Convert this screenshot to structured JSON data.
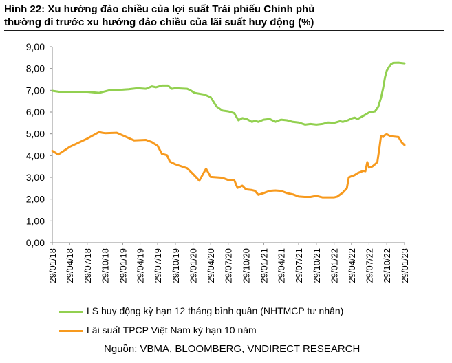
{
  "figure": {
    "title_lines": [
      "Hình 22: Xu hướng đảo chiều của lợi suất Trái phiếu Chính phủ",
      "thường đi trước xu hướng đảo chiều của lãi suất huy động (%)"
    ],
    "source": "Nguồn: VBMA, BLOOMBERG, VNDIRECT RESEARCH"
  },
  "chart_data": {
    "type": "line",
    "title": "Hình 22: Xu hướng đảo chiều của lợi suất Trái phiếu Chính phủ thường đi trước xu hướng đảo chiều của lãi suất huy động (%)",
    "xlabel": "",
    "ylabel": "",
    "ylim": [
      0,
      9
    ],
    "yticks": [
      "0,00",
      "1,00",
      "2,00",
      "3,00",
      "4,00",
      "5,00",
      "6,00",
      "7,00",
      "8,00",
      "9,00"
    ],
    "xticks": [
      "29/01/18",
      "29/04/18",
      "29/07/18",
      "29/10/18",
      "29/01/19",
      "29/04/19",
      "29/07/19",
      "29/10/19",
      "29/01/20",
      "29/04/20",
      "29/07/20",
      "29/10/20",
      "29/01/21",
      "29/04/21",
      "29/07/21",
      "29/10/21",
      "29/01/22",
      "29/04/22",
      "29/07/22",
      "29/10/22",
      "29/01/23"
    ],
    "grid": false,
    "legend_position": "bottom",
    "series": [
      {
        "name": "LS huy động kỳ hạn 12 tháng bình quân (NHTMCP tư nhân)",
        "color": "#92d050",
        "points": [
          [
            "29/01/18",
            6.98
          ],
          [
            "05/03/18",
            6.93
          ],
          [
            "29/04/18",
            6.93
          ],
          [
            "29/07/18",
            6.93
          ],
          [
            "29/09/18",
            6.88
          ],
          [
            "29/11/18",
            7.02
          ],
          [
            "29/01/19",
            7.03
          ],
          [
            "01/03/19",
            7.05
          ],
          [
            "15/04/19",
            7.1
          ],
          [
            "29/05/19",
            7.07
          ],
          [
            "29/06/19",
            7.18
          ],
          [
            "20/07/19",
            7.14
          ],
          [
            "20/08/19",
            7.22
          ],
          [
            "20/09/19",
            7.22
          ],
          [
            "10/10/19",
            7.07
          ],
          [
            "29/10/19",
            7.1
          ],
          [
            "29/12/19",
            7.07
          ],
          [
            "15/01/20",
            7.0
          ],
          [
            "05/02/20",
            6.88
          ],
          [
            "29/03/20",
            6.8
          ],
          [
            "29/04/20",
            6.68
          ],
          [
            "29/05/20",
            6.26
          ],
          [
            "29/06/20",
            6.07
          ],
          [
            "29/07/20",
            6.03
          ],
          [
            "29/08/20",
            5.95
          ],
          [
            "20/09/20",
            5.62
          ],
          [
            "10/10/20",
            5.72
          ],
          [
            "01/11/20",
            5.68
          ],
          [
            "29/11/20",
            5.55
          ],
          [
            "15/12/20",
            5.6
          ],
          [
            "01/01/21",
            5.55
          ],
          [
            "29/01/21",
            5.65
          ],
          [
            "01/03/21",
            5.68
          ],
          [
            "29/03/21",
            5.55
          ],
          [
            "29/04/21",
            5.65
          ],
          [
            "29/05/21",
            5.62
          ],
          [
            "29/06/21",
            5.55
          ],
          [
            "29/07/21",
            5.52
          ],
          [
            "01/09/21",
            5.42
          ],
          [
            "29/09/21",
            5.45
          ],
          [
            "29/10/21",
            5.42
          ],
          [
            "29/11/21",
            5.45
          ],
          [
            "29/12/21",
            5.52
          ],
          [
            "29/01/22",
            5.5
          ],
          [
            "01/03/22",
            5.58
          ],
          [
            "15/03/22",
            5.55
          ],
          [
            "10/04/22",
            5.62
          ],
          [
            "29/04/22",
            5.7
          ],
          [
            "15/05/22",
            5.74
          ],
          [
            "01/06/22",
            5.68
          ],
          [
            "29/06/22",
            5.82
          ],
          [
            "10/07/22",
            5.88
          ],
          [
            "29/07/22",
            5.98
          ],
          [
            "29/08/22",
            6.03
          ],
          [
            "15/09/22",
            6.25
          ],
          [
            "29/09/22",
            6.65
          ],
          [
            "10/10/22",
            7.1
          ],
          [
            "20/10/22",
            7.6
          ],
          [
            "29/10/22",
            7.9
          ],
          [
            "10/11/22",
            8.08
          ],
          [
            "20/11/22",
            8.2
          ],
          [
            "01/12/22",
            8.26
          ],
          [
            "29/12/22",
            8.27
          ],
          [
            "29/01/23",
            8.24
          ]
        ]
      },
      {
        "name": "Lãi suất TPCP Việt Nam kỳ hạn 10 năm",
        "color": "#f79a1e",
        "points": [
          [
            "29/01/18",
            4.22
          ],
          [
            "01/03/18",
            4.05
          ],
          [
            "29/04/18",
            4.4
          ],
          [
            "29/07/18",
            4.78
          ],
          [
            "29/09/18",
            5.08
          ],
          [
            "15/10/18",
            5.05
          ],
          [
            "29/10/18",
            5.03
          ],
          [
            "29/12/18",
            5.05
          ],
          [
            "29/03/19",
            4.7
          ],
          [
            "29/05/19",
            4.72
          ],
          [
            "29/06/19",
            4.62
          ],
          [
            "29/07/19",
            4.45
          ],
          [
            "20/08/19",
            4.08
          ],
          [
            "15/09/19",
            4.02
          ],
          [
            "01/10/19",
            3.72
          ],
          [
            "29/10/19",
            3.6
          ],
          [
            "29/12/19",
            3.42
          ],
          [
            "29/01/20",
            3.15
          ],
          [
            "01/03/20",
            2.85
          ],
          [
            "05/04/20",
            3.4
          ],
          [
            "29/04/20",
            3.02
          ],
          [
            "29/06/20",
            2.98
          ],
          [
            "29/07/20",
            2.88
          ],
          [
            "29/08/20",
            2.88
          ],
          [
            "15/09/20",
            2.52
          ],
          [
            "10/10/20",
            2.62
          ],
          [
            "29/10/20",
            2.45
          ],
          [
            "29/11/20",
            2.42
          ],
          [
            "15/12/20",
            2.38
          ],
          [
            "01/01/21",
            2.2
          ],
          [
            "29/01/21",
            2.28
          ],
          [
            "01/03/21",
            2.38
          ],
          [
            "29/03/21",
            2.4
          ],
          [
            "29/04/21",
            2.38
          ],
          [
            "29/05/21",
            2.28
          ],
          [
            "29/06/21",
            2.22
          ],
          [
            "29/07/21",
            2.12
          ],
          [
            "29/08/21",
            2.1
          ],
          [
            "29/09/21",
            2.1
          ],
          [
            "29/10/21",
            2.15
          ],
          [
            "29/11/21",
            2.08
          ],
          [
            "29/12/21",
            2.08
          ],
          [
            "29/01/22",
            2.08
          ],
          [
            "15/02/22",
            2.12
          ],
          [
            "15/03/22",
            2.3
          ],
          [
            "05/04/22",
            2.5
          ],
          [
            "15/04/22",
            3.0
          ],
          [
            "29/04/22",
            3.05
          ],
          [
            "15/05/22",
            3.1
          ],
          [
            "01/06/22",
            3.2
          ],
          [
            "15/06/22",
            3.25
          ],
          [
            "01/07/22",
            3.3
          ],
          [
            "10/07/22",
            3.28
          ],
          [
            "20/07/22",
            3.7
          ],
          [
            "29/07/22",
            3.45
          ],
          [
            "15/08/22",
            3.5
          ],
          [
            "29/08/22",
            3.6
          ],
          [
            "10/09/22",
            3.7
          ],
          [
            "20/09/22",
            4.3
          ],
          [
            "29/09/22",
            4.9
          ],
          [
            "10/10/22",
            4.85
          ],
          [
            "20/10/22",
            4.95
          ],
          [
            "29/10/22",
            4.98
          ],
          [
            "15/11/22",
            4.9
          ],
          [
            "29/11/22",
            4.88
          ],
          [
            "29/12/22",
            4.85
          ],
          [
            "15/01/23",
            4.6
          ],
          [
            "29/01/23",
            4.48
          ]
        ]
      }
    ]
  }
}
